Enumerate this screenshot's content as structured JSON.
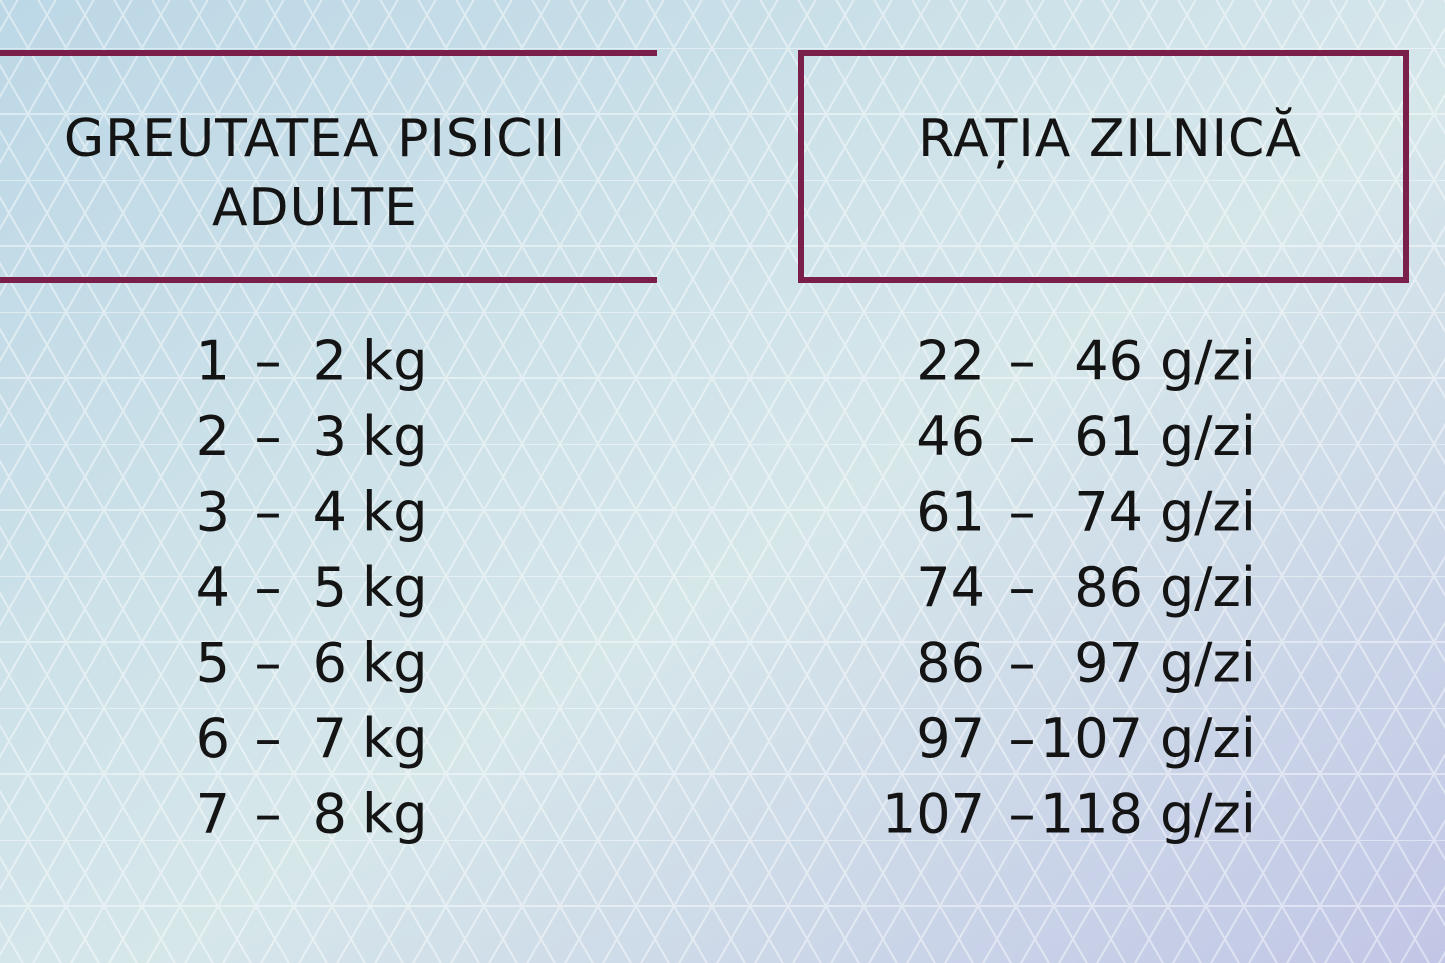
{
  "header": {
    "left": [
      "GREUTATEA PISICII",
      "ADULTE"
    ],
    "right": "RAȚIA ZILNICĂ"
  },
  "table": {
    "rows": [
      {
        "weight": [
          "1",
          "–",
          "2",
          "kg"
        ],
        "ration": [
          "22",
          "–",
          "46",
          "g/zi"
        ]
      },
      {
        "weight": [
          "2",
          "–",
          "3",
          "kg"
        ],
        "ration": [
          "46",
          "–",
          "61",
          "g/zi"
        ]
      },
      {
        "weight": [
          "3",
          "–",
          "4",
          "kg"
        ],
        "ration": [
          "61",
          "–",
          "74",
          "g/zi"
        ]
      },
      {
        "weight": [
          "4",
          "–",
          "5",
          "kg"
        ],
        "ration": [
          "74",
          "–",
          "86",
          "g/zi"
        ]
      },
      {
        "weight": [
          "5",
          "–",
          "6",
          "kg"
        ],
        "ration": [
          "86",
          "–",
          "97",
          "g/zi"
        ]
      },
      {
        "weight": [
          "6",
          "–",
          "7",
          "kg"
        ],
        "ration": [
          "97",
          "–",
          "107",
          "g/zi"
        ]
      },
      {
        "weight": [
          "7",
          "–",
          "8",
          "kg"
        ],
        "ration": [
          "107",
          "–",
          "118",
          "g/zi"
        ]
      }
    ]
  }
}
